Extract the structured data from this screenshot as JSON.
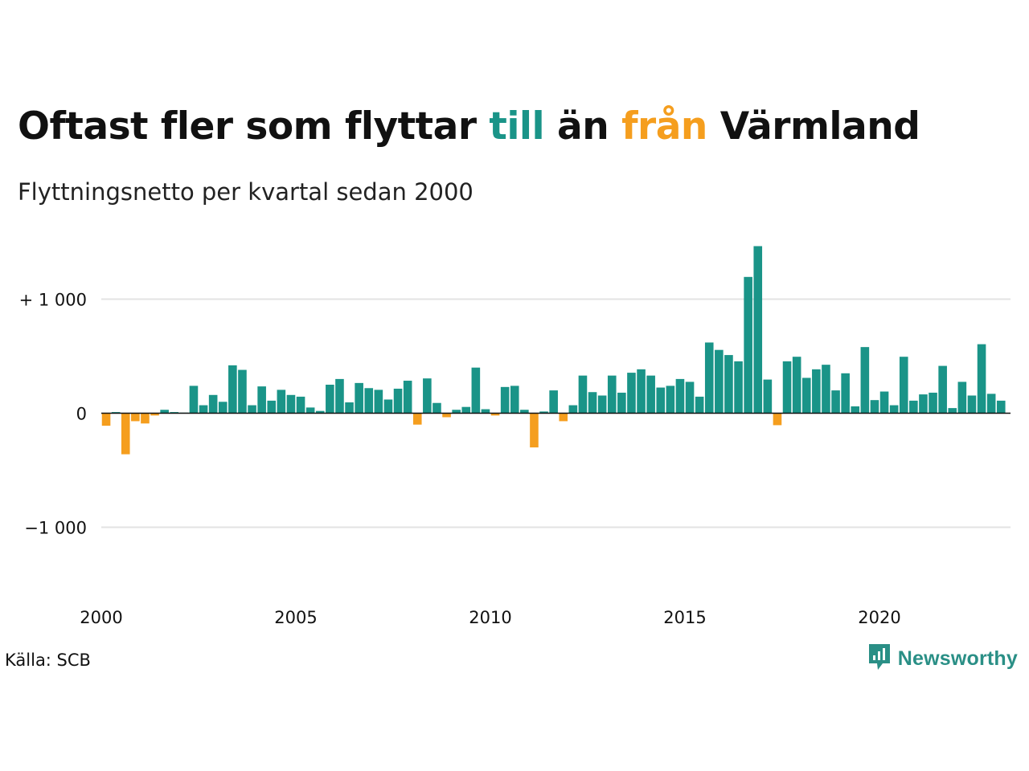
{
  "header": {
    "title_part1": "Oftast fler som flyttar ",
    "title_till": "till",
    "title_part2": " än ",
    "title_fran": "från",
    "title_part3": " Värmland",
    "subtitle": "Flyttningsnetto per kvartal sedan 2000"
  },
  "footer": {
    "source": "Källa: SCB",
    "brand": "Newsworthy"
  },
  "colors": {
    "positive": "#1a9488",
    "negative": "#f59e1e",
    "grid": "#e3e3e3",
    "axis": "#111111",
    "brand": "#2a8f86"
  },
  "chart_data": {
    "type": "bar",
    "title": "Oftast fler som flyttar till än från Värmland",
    "subtitle": "Flyttningsnetto per kvartal sedan 2000",
    "xlabel": "",
    "ylabel": "",
    "x_start_year": 2000,
    "periods_per_year": 4,
    "x_ticks": [
      {
        "value": 2000,
        "label": "2000"
      },
      {
        "value": 2005,
        "label": "2005"
      },
      {
        "value": 2010,
        "label": "2010"
      },
      {
        "value": 2015,
        "label": "2015"
      },
      {
        "value": 2020,
        "label": "2020"
      }
    ],
    "y_ticks": [
      {
        "value": 1000,
        "label": "+ 1 000"
      },
      {
        "value": 0,
        "label": "0"
      },
      {
        "value": -1000,
        "label": "−1 000"
      }
    ],
    "ylim": [
      -1500,
      1500
    ],
    "grid": true,
    "values": [
      -110,
      10,
      -360,
      -70,
      -90,
      -20,
      30,
      10,
      5,
      240,
      70,
      160,
      100,
      420,
      380,
      70,
      235,
      110,
      205,
      160,
      145,
      50,
      20,
      250,
      300,
      95,
      265,
      220,
      205,
      120,
      215,
      285,
      -100,
      305,
      90,
      -35,
      30,
      55,
      400,
      35,
      -20,
      230,
      240,
      30,
      -300,
      15,
      200,
      -70,
      70,
      330,
      185,
      155,
      330,
      180,
      355,
      385,
      330,
      225,
      240,
      300,
      275,
      145,
      620,
      555,
      510,
      455,
      1195,
      1465,
      295,
      -105,
      455,
      495,
      310,
      385,
      425,
      200,
      350,
      60,
      580,
      115,
      190,
      70,
      495,
      110,
      165,
      180,
      415,
      45,
      275,
      155,
      605,
      170,
      110
    ]
  }
}
